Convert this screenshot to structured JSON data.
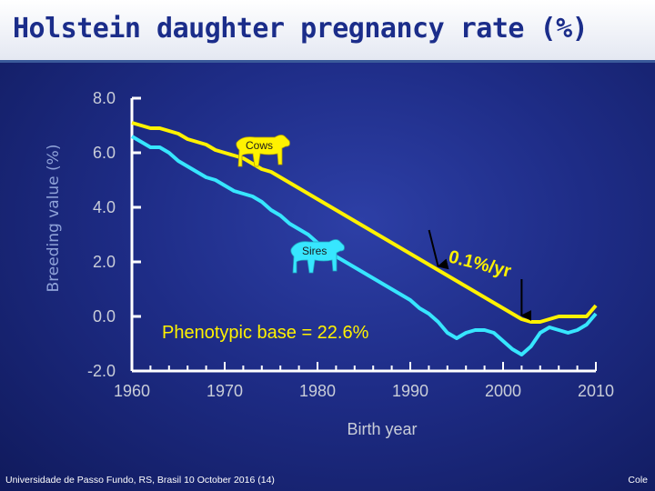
{
  "slide": {
    "title": "Holstein daughter pregnancy rate (%)",
    "footer_left": "Universidade de Passo Fundo, RS, Brasil 10 October 2016 (14)",
    "footer_right": "Cole"
  },
  "colors": {
    "cows": "#fff200",
    "sires": "#37e6ff",
    "axis": "#ffffff",
    "title": "#1b2d8a",
    "annotation": "#fff200"
  },
  "chart_data": {
    "type": "line",
    "title": "Holstein daughter pregnancy rate (%)",
    "xlabel": "Birth year",
    "ylabel": "Breeding value (%)",
    "xlim": [
      1960,
      2010
    ],
    "ylim": [
      -2.0,
      8.0
    ],
    "x_ticks": [
      "1960",
      "1970",
      "1980",
      "1990",
      "2000",
      "2010"
    ],
    "y_ticks": [
      "8.0",
      "6.0",
      "4.0",
      "2.0",
      "0.0",
      "-2.0"
    ],
    "series": [
      {
        "name": "Cows",
        "color": "#fff200",
        "x": [
          1960,
          1961,
          1962,
          1963,
          1964,
          1965,
          1966,
          1967,
          1968,
          1969,
          1970,
          1971,
          1972,
          1973,
          1974,
          1975,
          1976,
          1977,
          1978,
          1979,
          1980,
          1981,
          1982,
          1983,
          1984,
          1985,
          1986,
          1987,
          1988,
          1989,
          1990,
          1991,
          1992,
          1993,
          1994,
          1995,
          1996,
          1997,
          1998,
          1999,
          2000,
          2001,
          2002,
          2003,
          2004,
          2005,
          2006,
          2007,
          2008,
          2009,
          2010
        ],
        "y": [
          7.1,
          7.0,
          6.9,
          6.9,
          6.8,
          6.7,
          6.5,
          6.4,
          6.3,
          6.1,
          6.0,
          5.9,
          5.8,
          5.6,
          5.4,
          5.3,
          5.1,
          4.9,
          4.7,
          4.5,
          4.3,
          4.1,
          3.9,
          3.7,
          3.5,
          3.3,
          3.1,
          2.9,
          2.7,
          2.5,
          2.3,
          2.1,
          1.9,
          1.7,
          1.5,
          1.3,
          1.1,
          0.9,
          0.7,
          0.5,
          0.3,
          0.1,
          -0.1,
          -0.2,
          -0.2,
          -0.1,
          0.0,
          0.0,
          0.0,
          0.0,
          0.4
        ]
      },
      {
        "name": "Sires",
        "color": "#37e6ff",
        "x": [
          1960,
          1961,
          1962,
          1963,
          1964,
          1965,
          1966,
          1967,
          1968,
          1969,
          1970,
          1971,
          1972,
          1973,
          1974,
          1975,
          1976,
          1977,
          1978,
          1979,
          1980,
          1981,
          1982,
          1983,
          1984,
          1985,
          1986,
          1987,
          1988,
          1989,
          1990,
          1991,
          1992,
          1993,
          1994,
          1995,
          1996,
          1997,
          1998,
          1999,
          2000,
          2001,
          2002,
          2003,
          2004,
          2005,
          2006,
          2007,
          2008,
          2009,
          2010
        ],
        "y": [
          6.6,
          6.4,
          6.2,
          6.2,
          6.0,
          5.7,
          5.5,
          5.3,
          5.1,
          5.0,
          4.8,
          4.6,
          4.5,
          4.4,
          4.2,
          3.9,
          3.7,
          3.4,
          3.2,
          3.0,
          2.7,
          2.5,
          2.2,
          2.0,
          1.8,
          1.6,
          1.4,
          1.2,
          1.0,
          0.8,
          0.6,
          0.3,
          0.1,
          -0.2,
          -0.6,
          -0.8,
          -0.6,
          -0.5,
          -0.5,
          -0.6,
          -0.9,
          -1.2,
          -1.4,
          -1.1,
          -0.6,
          -0.4,
          -0.5,
          -0.6,
          -0.5,
          -0.3,
          0.1
        ]
      }
    ],
    "annotations": {
      "base_text": "Phenotypic base = 22.6%",
      "trend_text": "0.1%/yr",
      "cows_label": "Cows",
      "sires_label": "Sires",
      "arrow_years": [
        1993,
        2002
      ]
    }
  }
}
